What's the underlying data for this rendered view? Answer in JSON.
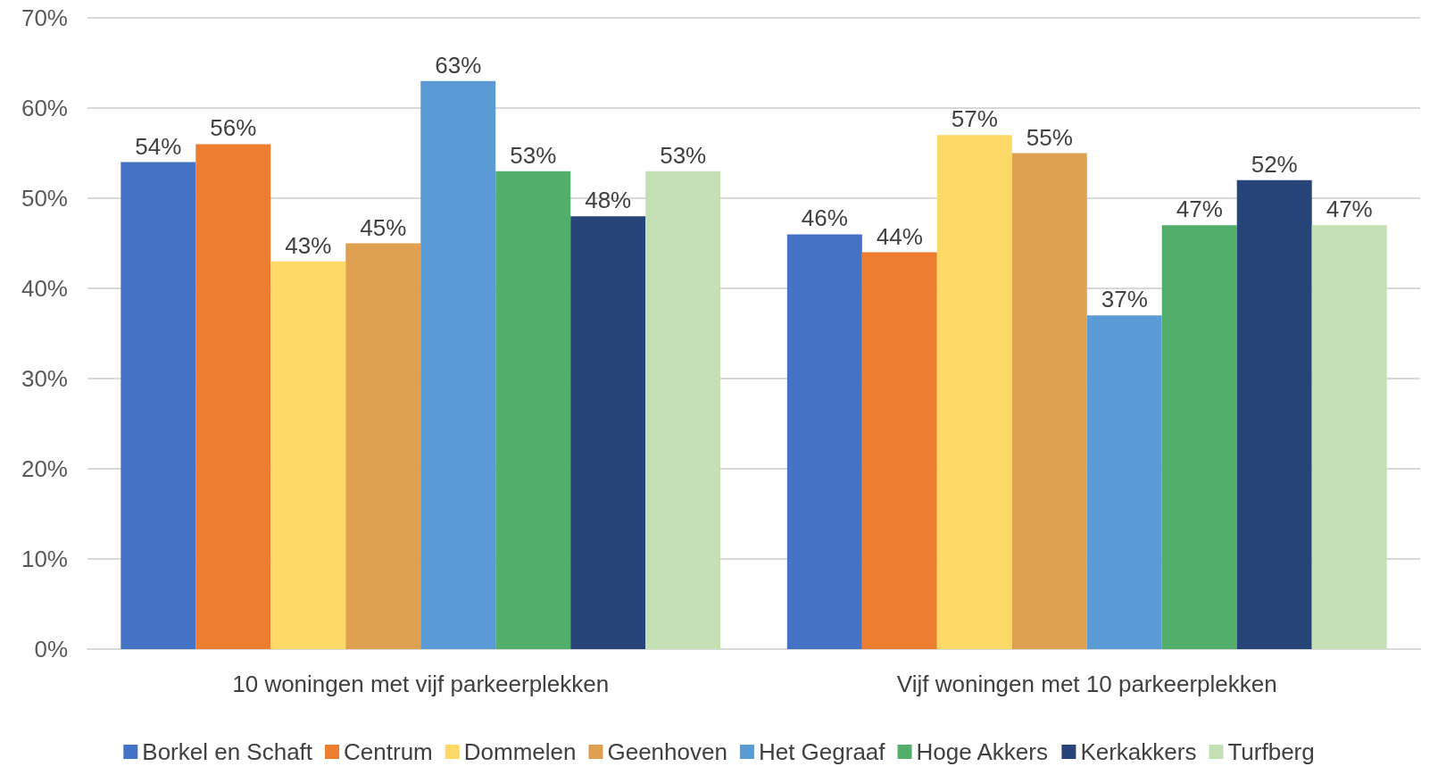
{
  "chart_data": {
    "type": "bar",
    "categories": [
      "10 woningen met vijf parkeerplekken",
      "Vijf woningen met 10 parkeerplekken"
    ],
    "series": [
      {
        "name": "Borkel en Schaft",
        "color": "#4472c4",
        "values": [
          54,
          46
        ],
        "value_labels": [
          "54%",
          "46%"
        ]
      },
      {
        "name": "Centrum",
        "color": "#ed7d31",
        "values": [
          56,
          44
        ],
        "value_labels": [
          "56%",
          "44%"
        ]
      },
      {
        "name": "Dommelen",
        "color": "#fdd968",
        "values": [
          43,
          57
        ],
        "value_labels": [
          "43%",
          "57%"
        ]
      },
      {
        "name": "Geenhoven",
        "color": "#e0a052",
        "values": [
          45,
          55
        ],
        "value_labels": [
          "45%",
          "55%"
        ]
      },
      {
        "name": "Het Gegraaf",
        "color": "#5b9bd5",
        "values": [
          63,
          37
        ],
        "value_labels": [
          "63%",
          "37%"
        ]
      },
      {
        "name": "Hoge Akkers",
        "color": "#53ad6b",
        "values": [
          53,
          47
        ],
        "value_labels": [
          "53%",
          "47%"
        ]
      },
      {
        "name": "Kerkakkers",
        "color": "#264478",
        "values": [
          48,
          52
        ],
        "value_labels": [
          "48%",
          "52%"
        ]
      },
      {
        "name": "Turfberg",
        "color": "#c5e0b4",
        "values": [
          53,
          47
        ],
        "value_labels": [
          "53%",
          "47%"
        ]
      }
    ],
    "ylim": [
      0,
      70
    ],
    "yticks": [
      {
        "value": 0,
        "label": "0%"
      },
      {
        "value": 10,
        "label": "10%"
      },
      {
        "value": 20,
        "label": "20%"
      },
      {
        "value": 30,
        "label": "30%"
      },
      {
        "value": 40,
        "label": "40%"
      },
      {
        "value": 50,
        "label": "50%"
      },
      {
        "value": 60,
        "label": "60%"
      },
      {
        "value": 70,
        "label": "70%"
      }
    ],
    "grid": "y",
    "legend": "bottom"
  }
}
